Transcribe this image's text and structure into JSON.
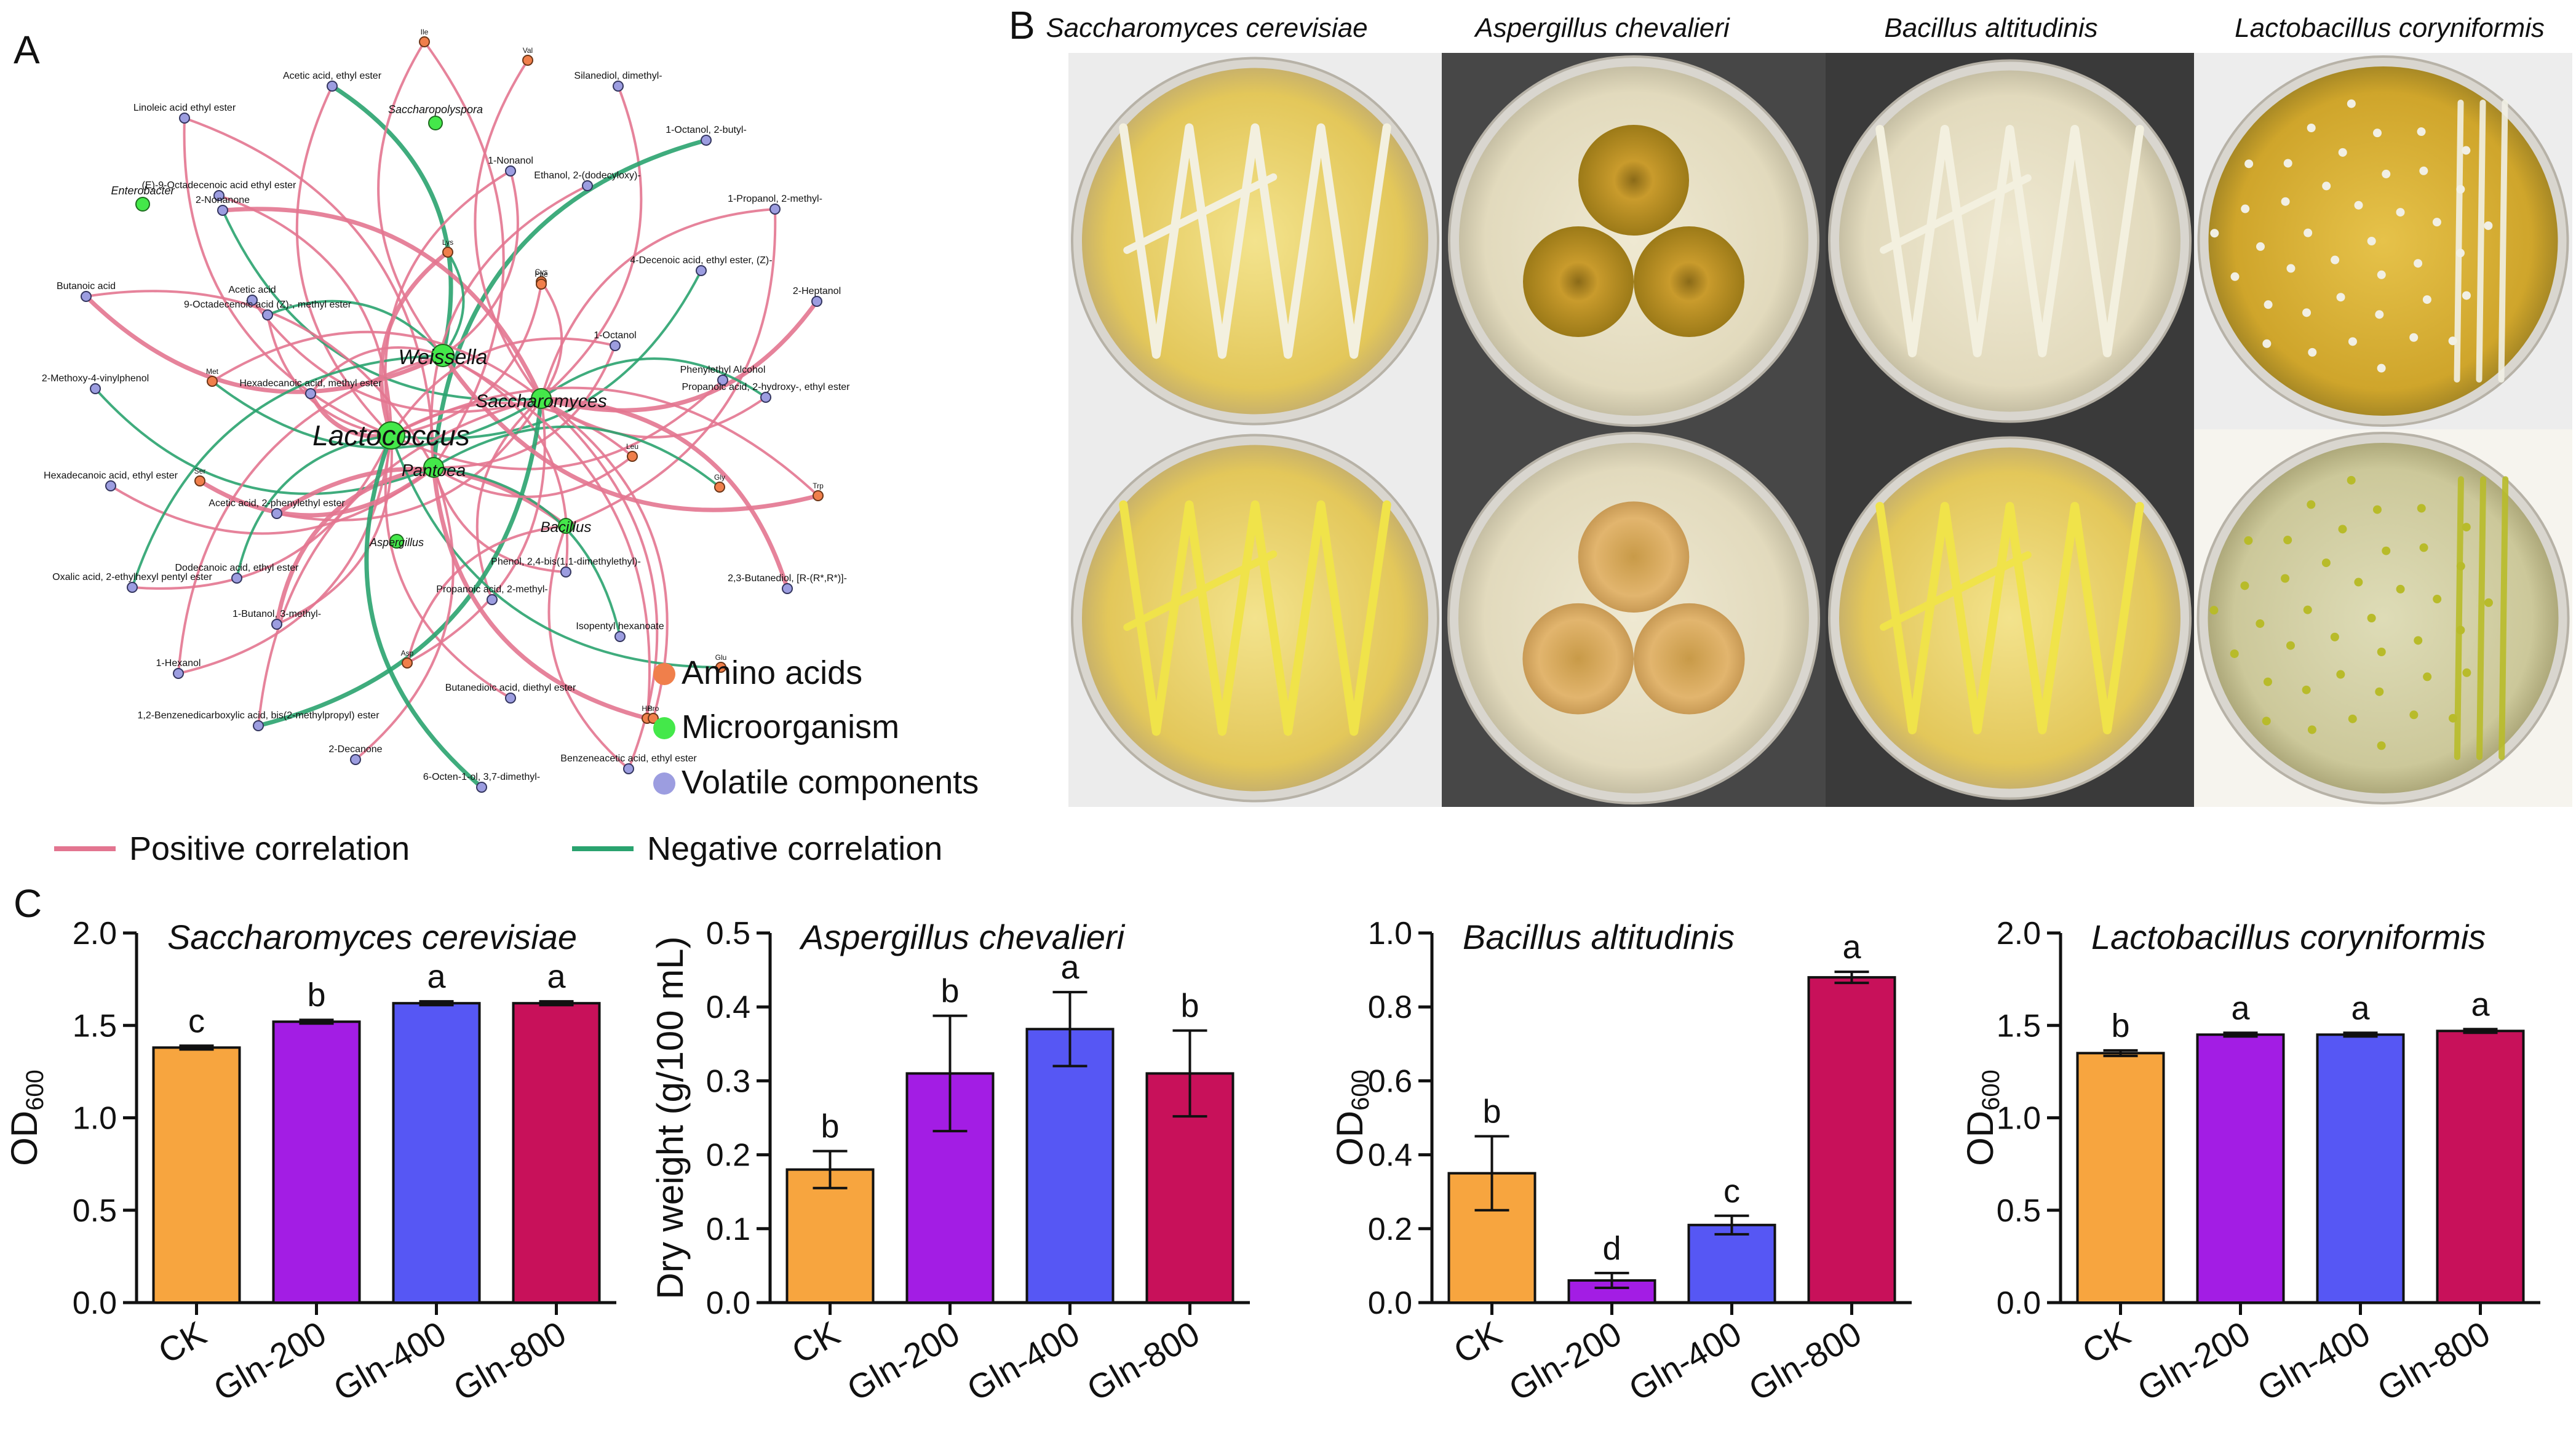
{
  "panel_labels": [
    "A",
    "B",
    "C"
  ],
  "colors": {
    "positive": "#e37590",
    "negative": "#2aa36f",
    "amino": "#f07f4b",
    "micro": "#44e84a",
    "volatile": "#9c9de0",
    "CK": "#f7a53f",
    "Gln-200": "#a31de4",
    "Gln-400": "#5657f4",
    "Gln-800": "#c8115a"
  },
  "network": {
    "micro_nodes": [
      "Weissella",
      "Saccharomyces",
      "Lactococcus",
      "Pantoea",
      "Bacillus",
      "Aspergillus",
      "Saccharopolyspora",
      "Enterobacter"
    ],
    "volatile_nodes": [
      "Acetic acid, ethyl ester",
      "Silanediol, dimethyl-",
      "Linoleic acid ethyl ester",
      "1-Octanol, 2-butyl-",
      "1-Nonanol",
      "(E)-9-Octadecenoic acid ethyl ester",
      "2-Nonanone",
      "Ethanol, 2-(dodecyloxy)-",
      "1-Propanol, 2-methyl-",
      "4-Decenoic acid, ethyl ester, (Z)-",
      "Butanoic acid",
      "Acetic acid",
      "9-Octadecenoic acid (Z)-, methyl ester",
      "2-Heptanol",
      "1-Octanol",
      "2-Methoxy-4-vinylphenol",
      "Hexadecanoic acid, methyl ester",
      "Phenylethyl Alcohol",
      "Propanoic acid, 2-hydroxy-, ethyl ester",
      "Hexadecanoic acid, ethyl ester",
      "Acetic acid, 2-phenylethyl ester",
      "Dodecanoic acid, ethyl ester",
      "Phenol, 2,4-bis(1,1-dimethylethyl)-",
      "2,3-Butanediol, [R-(R*,R*)]-",
      "Oxalic acid, 2-ethylhexyl pentyl ester",
      "Propanoic acid, 2-methyl-",
      "1-Butanol, 3-methyl-",
      "Isopentyl hexanoate",
      "1-Hexanol",
      "Butanedioic acid, diethyl ester",
      "1,2-Benzenedicarboxylic acid, bis(2-methylpropyl) ester",
      "2-Decanone",
      "Benzeneacetic acid, ethyl ester",
      "6-Octen-1-ol, 3,7-dimethyl-"
    ],
    "amino_nodes": [
      "Ile",
      "Val",
      "Lys",
      "Cys",
      "Leu",
      "Gly",
      "Trp",
      "Phe",
      "Met",
      "Ser",
      "Asp",
      "Glu",
      "His",
      "Pro"
    ],
    "legend_nodes": [
      "Amino acids",
      "Microorganism",
      "Volatile components"
    ],
    "legend_lines": [
      "Positive correlation",
      "Negative correlation"
    ]
  },
  "plates": {
    "titles": [
      "Saccharomyces cerevisiae",
      "Aspergillus chevalieri",
      "Bacillus altitudinis",
      "Lactobacillus coryniformis"
    ]
  },
  "chart_data": [
    {
      "type": "bar",
      "title": "Saccharomyces cerevisiae",
      "xlabel": "",
      "ylabel": "OD600",
      "categories": [
        "CK",
        "Gln-200",
        "Gln-400",
        "Gln-800"
      ],
      "values": [
        1.38,
        1.52,
        1.62,
        1.62
      ],
      "errors": [
        0.01,
        0.01,
        0.01,
        0.01
      ],
      "letters": [
        "c",
        "b",
        "a",
        "a"
      ],
      "ylim": [
        0,
        2.0
      ],
      "yticks": [
        "0.0",
        "0.5",
        "1.0",
        "1.5",
        "2.0"
      ]
    },
    {
      "type": "bar",
      "title": "Aspergillus chevalieri",
      "xlabel": "",
      "ylabel": "Dry weight (g/100 mL)",
      "categories": [
        "CK",
        "Gln-200",
        "Gln-400",
        "Gln-800"
      ],
      "values": [
        0.18,
        0.31,
        0.37,
        0.31
      ],
      "errors": [
        0.025,
        0.078,
        0.05,
        0.058
      ],
      "letters": [
        "b",
        "b",
        "a",
        "b"
      ],
      "ylim": [
        0,
        0.5
      ],
      "yticks": [
        "0.0",
        "0.1",
        "0.2",
        "0.3",
        "0.4",
        "0.5"
      ]
    },
    {
      "type": "bar",
      "title": "Bacillus altitudinis",
      "xlabel": "",
      "ylabel": "OD600",
      "categories": [
        "CK",
        "Gln-200",
        "Gln-400",
        "Gln-800"
      ],
      "values": [
        0.35,
        0.06,
        0.21,
        0.88
      ],
      "errors": [
        0.1,
        0.02,
        0.025,
        0.015
      ],
      "letters": [
        "b",
        "d",
        "c",
        "a"
      ],
      "ylim": [
        0,
        1.0
      ],
      "yticks": [
        "0.0",
        "0.2",
        "0.4",
        "0.6",
        "0.8",
        "1.0"
      ]
    },
    {
      "type": "bar",
      "title": "Lactobacillus coryniformis",
      "xlabel": "",
      "ylabel": "OD600",
      "categories": [
        "CK",
        "Gln-200",
        "Gln-400",
        "Gln-800"
      ],
      "values": [
        1.35,
        1.45,
        1.45,
        1.47
      ],
      "errors": [
        0.015,
        0.01,
        0.01,
        0.01
      ],
      "letters": [
        "b",
        "a",
        "a",
        "a"
      ],
      "ylim": [
        0,
        2.0
      ],
      "yticks": [
        "0.0",
        "0.5",
        "1.0",
        "1.5",
        "2.0"
      ]
    }
  ]
}
